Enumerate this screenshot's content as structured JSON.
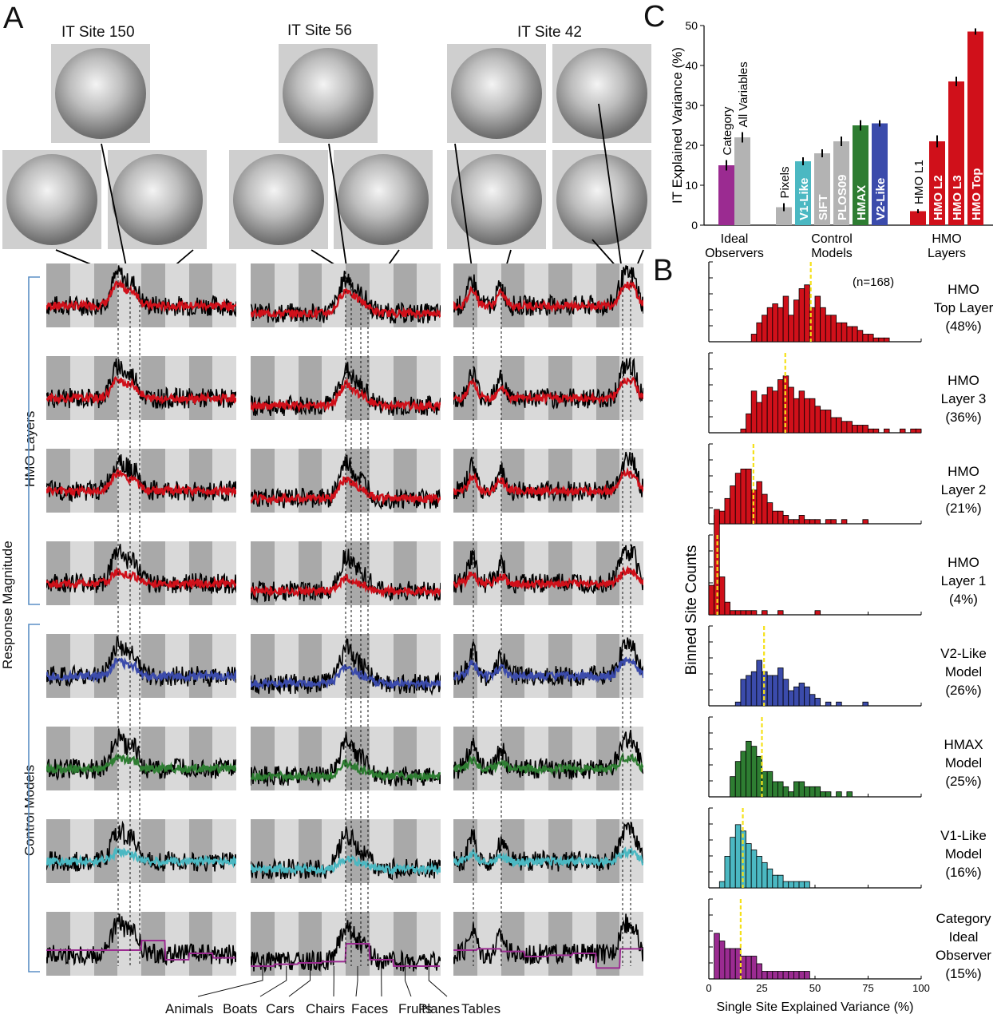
{
  "panel_letters": {
    "a": "A",
    "b": "B",
    "c": "C"
  },
  "sites": [
    {
      "title": "IT Site 150"
    },
    {
      "title": "IT Site 56"
    },
    {
      "title": "IT Site 42"
    }
  ],
  "row_groups": {
    "hmo": "HMO Layers",
    "control": "Control Models",
    "y_axis": "Response Magnitude"
  },
  "trace_rows": [
    {
      "model": "HMO Top Layer",
      "color": "#d0101a"
    },
    {
      "model": "HMO Layer 3",
      "color": "#d0101a"
    },
    {
      "model": "HMO Layer 2",
      "color": "#d0101a"
    },
    {
      "model": "HMO Layer 1",
      "color": "#d0101a"
    },
    {
      "model": "V2-Like Model",
      "color": "#3b4bab"
    },
    {
      "model": "HMAX Model",
      "color": "#2e7d32"
    },
    {
      "model": "V1-Like Model",
      "color": "#4bb8c2"
    },
    {
      "model": "Category Ideal Observer",
      "color": "#9b2b91"
    }
  ],
  "categories": [
    "Animals",
    "Boats",
    "Cars",
    "Chairs",
    "Faces",
    "Fruits",
    "Planes",
    "Tables"
  ],
  "chart_data": [
    {
      "type": "bar",
      "title": "",
      "ylabel": "IT Explained Variance (%)",
      "ylim": [
        0,
        50
      ],
      "yticks": [
        0,
        10,
        20,
        30,
        40,
        50
      ],
      "bars": [
        {
          "label": "Category",
          "value": 15,
          "err": 1.3,
          "color": "#9b2b91",
          "group": "Ideal Observers",
          "label_inside": false
        },
        {
          "label": "All Variables",
          "value": 22,
          "err": 1.3,
          "color": "#b3b3b3",
          "group": "Ideal Observers",
          "label_inside": false
        },
        {
          "label": "Pixels",
          "value": 4.5,
          "err": 1.0,
          "color": "#b3b3b3",
          "group": "Control Models",
          "label_inside": false
        },
        {
          "label": "V1-Like",
          "value": 16,
          "err": 1.0,
          "color": "#4bb8c2",
          "group": "Control Models",
          "label_inside": true
        },
        {
          "label": "SIFT",
          "value": 18,
          "err": 1.0,
          "color": "#b3b3b3",
          "group": "Control Models",
          "label_inside": true
        },
        {
          "label": "PLOS09",
          "value": 21,
          "err": 1.2,
          "color": "#b3b3b3",
          "group": "Control Models",
          "label_inside": true
        },
        {
          "label": "HMAX",
          "value": 25,
          "err": 1.3,
          "color": "#2e7d32",
          "group": "Control Models",
          "label_inside": true
        },
        {
          "label": "V2-Like",
          "value": 25.5,
          "err": 0.8,
          "color": "#3b4bab",
          "group": "Control Models",
          "label_inside": true
        },
        {
          "label": "HMO L1",
          "value": 3.5,
          "err": 0.5,
          "color": "#d0101a",
          "group": "HMO Layers",
          "label_inside": false
        },
        {
          "label": "HMO L2",
          "value": 21,
          "err": 1.5,
          "color": "#d0101a",
          "group": "HMO Layers",
          "label_inside": true
        },
        {
          "label": "HMO L3",
          "value": 36,
          "err": 1.2,
          "color": "#d0101a",
          "group": "HMO Layers",
          "label_inside": true
        },
        {
          "label": "HMO Top",
          "value": 48.5,
          "err": 0.8,
          "color": "#d0101a",
          "group": "HMO Layers",
          "label_inside": true
        }
      ],
      "groups": [
        "Ideal\nObservers",
        "Control\nModels",
        "HMO\nLayers"
      ]
    },
    {
      "type": "bar",
      "subtype": "histogram-stack",
      "xlabel": "Single Site Explained Variance (%)",
      "ylabel": "Binned Site Counts",
      "xlim": [
        0,
        100
      ],
      "xticks": [
        0,
        25,
        50,
        75,
        100
      ],
      "bin_width": 2.5,
      "note": "(n=168)",
      "histograms": [
        {
          "label": "HMO\nTop Layer\n(48%)",
          "color": "#d0101a",
          "mean": 48,
          "counts": [
            0,
            0,
            0,
            0,
            0,
            0,
            0,
            0,
            2,
            5,
            7,
            9,
            10,
            9,
            12,
            7,
            11,
            14,
            15,
            9,
            12,
            9,
            7,
            7,
            5,
            5,
            4,
            4,
            3,
            2,
            2,
            1,
            1,
            1,
            0,
            0,
            0,
            0,
            0,
            0
          ]
        },
        {
          "label": "HMO\nLayer 3\n(36%)",
          "color": "#d0101a",
          "mean": 36,
          "counts": [
            0,
            0,
            0,
            0,
            0,
            0,
            1,
            5,
            11,
            8,
            10,
            12,
            11,
            14,
            15,
            12,
            9,
            11,
            9,
            9,
            7,
            6,
            6,
            4,
            4,
            3,
            3,
            2,
            2,
            2,
            1,
            1,
            0,
            1,
            0,
            0,
            1,
            0,
            1,
            1
          ]
        },
        {
          "label": "HMO\nLayer 2\n(21%)",
          "color": "#d0101a",
          "mean": 21,
          "counts": [
            0,
            2,
            3,
            6,
            9,
            12,
            13,
            13,
            8,
            10,
            7,
            5,
            3,
            3,
            2,
            1,
            1,
            2,
            1,
            1,
            1,
            0,
            1,
            1,
            0,
            1,
            0,
            0,
            0,
            1,
            0,
            0,
            0,
            0,
            0,
            0,
            0,
            0,
            0,
            0
          ]
        },
        {
          "label": "HMO\nLayer 1\n(4%)",
          "color": "#d0101a",
          "mean": 4,
          "counts": [
            7,
            25,
            9,
            3,
            1,
            1,
            1,
            1,
            1,
            0,
            1,
            0,
            0,
            1,
            0,
            0,
            0,
            0,
            0,
            0,
            1,
            0,
            0,
            0,
            0,
            0,
            0,
            0,
            0,
            0,
            0,
            0,
            0,
            0,
            0,
            0,
            0,
            0,
            0,
            0
          ]
        },
        {
          "label": "V2-Like\nModel\n(26%)",
          "color": "#3b4bab",
          "mean": 26,
          "counts": [
            0,
            0,
            0,
            0,
            0,
            1,
            7,
            8,
            9,
            12,
            9,
            8,
            8,
            10,
            7,
            4,
            5,
            6,
            5,
            3,
            2,
            0,
            1,
            0,
            1,
            0,
            0,
            0,
            0,
            1,
            0,
            0,
            0,
            0,
            0,
            0,
            0,
            0,
            0,
            0
          ]
        },
        {
          "label": "HMAX\nModel\n(25%)",
          "color": "#2e7d32",
          "mean": 25,
          "counts": [
            0,
            0,
            0,
            0,
            4,
            7,
            9,
            11,
            10,
            8,
            5,
            5,
            3,
            3,
            2,
            1,
            3,
            3,
            2,
            2,
            2,
            1,
            1,
            0,
            1,
            0,
            1,
            0,
            0,
            0,
            0,
            0,
            0,
            0,
            0,
            0,
            0,
            0,
            0,
            0
          ]
        },
        {
          "label": "V1-Like\nModel\n(16%)",
          "color": "#4bb8c2",
          "mean": 16,
          "counts": [
            0,
            0,
            1,
            5,
            8,
            10,
            9,
            7,
            6,
            5,
            4,
            3,
            2,
            2,
            1,
            1,
            1,
            1,
            1,
            0,
            0,
            0,
            0,
            0,
            0,
            0,
            0,
            0,
            0,
            0,
            0,
            0,
            0,
            0,
            0,
            0,
            0,
            0,
            0,
            0
          ]
        },
        {
          "label": "Category\nIdeal\nObserver\n(15%)",
          "color": "#9b2b91",
          "mean": 15,
          "counts": [
            0,
            6,
            5,
            4,
            4,
            4,
            3,
            3,
            3,
            2,
            1,
            1,
            1,
            1,
            1,
            1,
            1,
            1,
            1,
            0,
            0,
            0,
            0,
            0,
            0,
            0,
            0,
            0,
            0,
            0,
            0,
            0,
            0,
            0,
            0,
            0,
            0,
            0,
            0,
            0
          ]
        }
      ]
    }
  ]
}
